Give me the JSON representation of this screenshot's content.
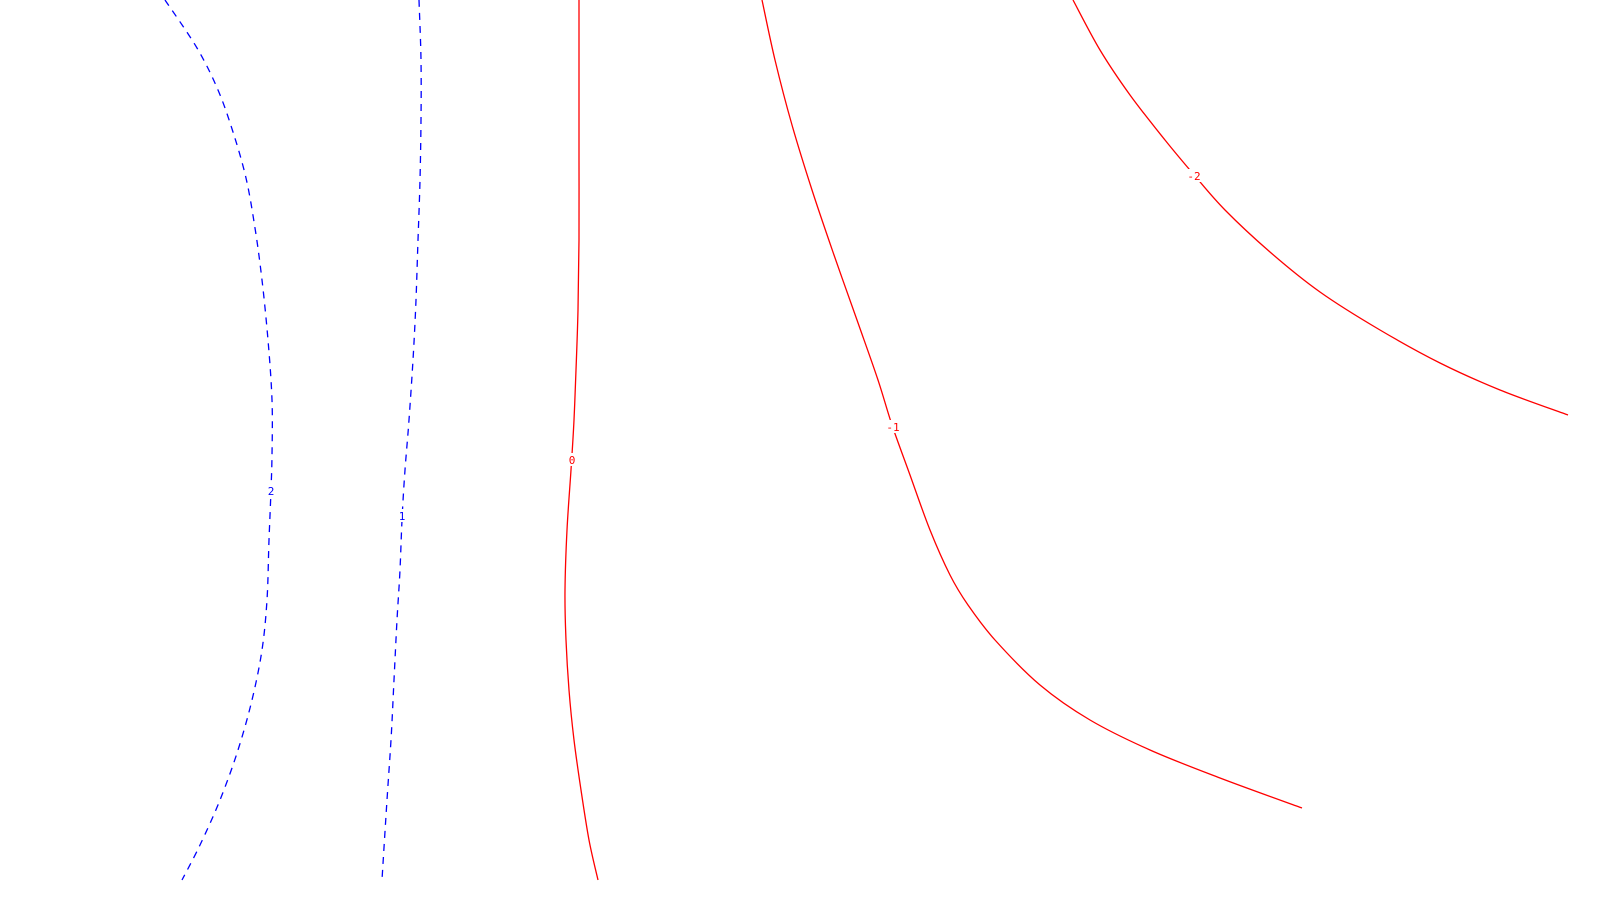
{
  "chart_data": {
    "type": "contour",
    "title": "",
    "xlabel": "",
    "ylabel": "",
    "grid": false,
    "legend": "none",
    "colors": {
      "positive": "#0000ff",
      "negative": "#ff0000",
      "zero": "#ff0000"
    },
    "contours": [
      {
        "level": "2",
        "style": "dashed",
        "color": "#0000ff",
        "points": [
          [
            165,
            0
          ],
          [
            197,
            48
          ],
          [
            218,
            90
          ],
          [
            233,
            132
          ],
          [
            246,
            178
          ],
          [
            255,
            228
          ],
          [
            262,
            280
          ],
          [
            268,
            340
          ],
          [
            272,
            400
          ],
          [
            272,
            455
          ],
          [
            271,
            490
          ],
          [
            269,
            540
          ],
          [
            267,
            600
          ],
          [
            262,
            650
          ],
          [
            252,
            700
          ],
          [
            238,
            750
          ],
          [
            220,
            800
          ],
          [
            200,
            845
          ],
          [
            182,
            880
          ]
        ],
        "label_at": [
          271,
          491
        ]
      },
      {
        "level": "1",
        "style": "dashed",
        "color": "#0000ff",
        "points": [
          [
            419,
            0
          ],
          [
            421,
            60
          ],
          [
            421,
            120
          ],
          [
            420,
            180
          ],
          [
            418,
            240
          ],
          [
            416,
            300
          ],
          [
            413,
            360
          ],
          [
            409,
            420
          ],
          [
            405,
            470
          ],
          [
            402,
            520
          ],
          [
            400,
            570
          ],
          [
            397,
            620
          ],
          [
            394,
            680
          ],
          [
            391,
            740
          ],
          [
            387,
            800
          ],
          [
            382,
            880
          ]
        ],
        "label_at": [
          402,
          516
        ]
      },
      {
        "level": "0",
        "style": "solid",
        "color": "#ff0000",
        "points": [
          [
            579,
            0
          ],
          [
            579,
            80
          ],
          [
            579,
            160
          ],
          [
            579,
            240
          ],
          [
            578,
            310
          ],
          [
            576,
            370
          ],
          [
            574,
            420
          ],
          [
            571,
            470
          ],
          [
            567,
            530
          ],
          [
            565,
            590
          ],
          [
            566,
            640
          ],
          [
            569,
            690
          ],
          [
            574,
            740
          ],
          [
            581,
            790
          ],
          [
            589,
            840
          ],
          [
            598,
            880
          ]
        ],
        "label_at": [
          572,
          460
        ]
      },
      {
        "level": "-1",
        "style": "solid",
        "color": "#ff0000",
        "points": [
          [
            762,
            0
          ],
          [
            775,
            60
          ],
          [
            792,
            125
          ],
          [
            812,
            190
          ],
          [
            834,
            255
          ],
          [
            857,
            320
          ],
          [
            878,
            380
          ],
          [
            892,
            425
          ],
          [
            910,
            475
          ],
          [
            930,
            530
          ],
          [
            950,
            575
          ],
          [
            968,
            605
          ],
          [
            995,
            640
          ],
          [
            1040,
            685
          ],
          [
            1090,
            720
          ],
          [
            1150,
            750
          ],
          [
            1220,
            778
          ],
          [
            1302,
            808
          ]
        ],
        "label_at": [
          893,
          427
        ]
      },
      {
        "level": "-2",
        "style": "solid",
        "color": "#ff0000",
        "points": [
          [
            1073,
            0
          ],
          [
            1100,
            50
          ],
          [
            1130,
            95
          ],
          [
            1165,
            140
          ],
          [
            1195,
            176
          ],
          [
            1225,
            210
          ],
          [
            1270,
            252
          ],
          [
            1320,
            292
          ],
          [
            1380,
            330
          ],
          [
            1440,
            363
          ],
          [
            1500,
            390
          ],
          [
            1568,
            415
          ]
        ],
        "label_at": [
          1194,
          176
        ]
      }
    ]
  }
}
